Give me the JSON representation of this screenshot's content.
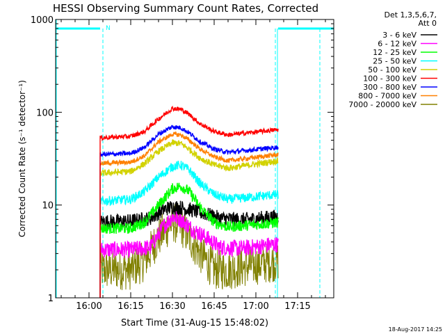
{
  "chart_data": {
    "type": "line",
    "title": "HESSI Observing Summary Count Rates, Corrected",
    "xlabel": "Start Time (31-Aug-15 15:48:02)",
    "ylabel": "Corrected Count Rate (s⁻¹ detector⁻¹)",
    "y_scale": "log",
    "ylim": [
      1,
      1000
    ],
    "xlim": [
      "15:48",
      "17:28"
    ],
    "x_ticks": [
      "16:00",
      "16:15",
      "16:30",
      "16:45",
      "17:00",
      "17:15"
    ],
    "y_ticks": [
      "1",
      "10",
      "100",
      "1000"
    ],
    "grid": false,
    "legend_position": "right",
    "legend_header": [
      "Det 1,3,5,6,7,",
      "Att 0"
    ],
    "timestamp": "18-Aug-2017 14:25",
    "night_marker_label": "N",
    "data_interval": [
      "16:04",
      "17:08"
    ],
    "night_intervals": [
      [
        "15:48",
        "16:04"
      ],
      [
        "17:08",
        "17:28"
      ]
    ],
    "marker_lines": [
      "16:05",
      "17:07",
      "17:23"
    ],
    "series": [
      {
        "name": "3 - 6 keV",
        "color": "#000000",
        "x": [
          "16:04",
          "16:15",
          "16:22",
          "16:27",
          "16:30",
          "16:33",
          "16:37",
          "16:42",
          "16:47",
          "16:55",
          "17:08"
        ],
        "y": [
          6.6,
          6.7,
          7.2,
          9.0,
          9.6,
          9.4,
          8.8,
          8.0,
          7.2,
          6.9,
          7.5
        ]
      },
      {
        "name": "6 - 12 keV",
        "color": "#ff00ff",
        "x": [
          "16:04",
          "16:15",
          "16:22",
          "16:27",
          "16:30",
          "16:33",
          "16:37",
          "16:42",
          "16:47",
          "16:55",
          "17:08"
        ],
        "y": [
          3.3,
          3.3,
          3.5,
          6.0,
          7.5,
          7.0,
          5.5,
          4.5,
          3.5,
          3.4,
          3.8
        ]
      },
      {
        "name": "12 - 25 keV",
        "color": "#00ff00",
        "x": [
          "16:04",
          "16:15",
          "16:20",
          "16:25",
          "16:30",
          "16:33",
          "16:36",
          "16:40",
          "16:45",
          "16:50",
          "17:08"
        ],
        "y": [
          5.6,
          5.6,
          6.5,
          10.0,
          15.0,
          16.0,
          14.0,
          9.5,
          6.5,
          5.8,
          6.5
        ]
      },
      {
        "name": "25 - 50 keV",
        "color": "#00ffff",
        "x": [
          "16:04",
          "16:15",
          "16:20",
          "16:25",
          "16:30",
          "16:33",
          "16:36",
          "16:40",
          "16:45",
          "16:50",
          "17:08"
        ],
        "y": [
          11.0,
          11.5,
          14.0,
          20.0,
          26.0,
          27.0,
          24.0,
          17.0,
          13.0,
          11.5,
          13.0
        ]
      },
      {
        "name": "50 - 100 keV",
        "color": "#d2d200",
        "x": [
          "16:04",
          "16:15",
          "16:20",
          "16:25",
          "16:30",
          "16:33",
          "16:36",
          "16:40",
          "16:45",
          "16:50",
          "17:08"
        ],
        "y": [
          22.0,
          23.0,
          28.0,
          38.0,
          47.0,
          46.0,
          40.0,
          32.0,
          27.0,
          25.0,
          30.0
        ]
      },
      {
        "name": "100 - 300 keV",
        "color": "#ff0000",
        "x": [
          "16:04",
          "16:15",
          "16:20",
          "16:25",
          "16:30",
          "16:33",
          "16:36",
          "16:40",
          "16:45",
          "16:50",
          "17:08"
        ],
        "y": [
          53.0,
          55.0,
          62.0,
          85.0,
          110.0,
          108.0,
          95.0,
          75.0,
          62.0,
          57.0,
          65.0
        ]
      },
      {
        "name": "300 - 800 keV",
        "color": "#0000ff",
        "x": [
          "16:04",
          "16:15",
          "16:20",
          "16:25",
          "16:30",
          "16:33",
          "16:36",
          "16:40",
          "16:45",
          "16:50",
          "17:08"
        ],
        "y": [
          35.0,
          36.0,
          42.0,
          58.0,
          70.0,
          68.0,
          60.0,
          48.0,
          40.0,
          37.0,
          42.0
        ]
      },
      {
        "name": "800 - 7000 keV",
        "color": "#ff8000",
        "x": [
          "16:04",
          "16:15",
          "16:20",
          "16:25",
          "16:30",
          "16:33",
          "16:36",
          "16:40",
          "16:45",
          "16:50",
          "17:08"
        ],
        "y": [
          28.0,
          29.0,
          34.0,
          48.0,
          58.0,
          57.0,
          50.0,
          40.0,
          33.0,
          30.0,
          35.0
        ]
      },
      {
        "name": "7000 - 20000 keV",
        "color": "#808000",
        "x": [
          "16:04",
          "16:15",
          "16:20",
          "16:25",
          "16:30",
          "16:33",
          "16:36",
          "16:40",
          "16:45",
          "16:50",
          "17:08"
        ],
        "y": [
          2.0,
          2.0,
          2.5,
          4.5,
          6.5,
          6.0,
          4.5,
          3.0,
          2.0,
          2.0,
          2.5
        ]
      }
    ]
  }
}
